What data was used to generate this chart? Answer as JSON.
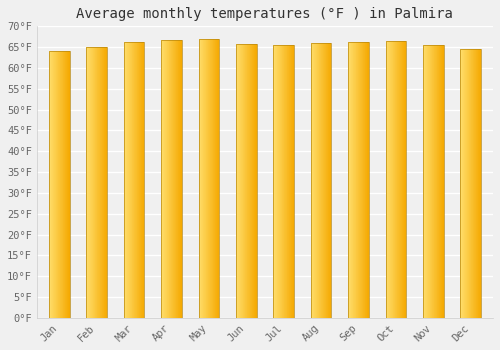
{
  "title": "Average monthly temperatures (°F ) in Palmira",
  "months": [
    "Jan",
    "Feb",
    "Mar",
    "Apr",
    "May",
    "Jun",
    "Jul",
    "Aug",
    "Sep",
    "Oct",
    "Nov",
    "Dec"
  ],
  "values": [
    64.0,
    65.1,
    66.2,
    66.6,
    67.0,
    65.8,
    65.5,
    66.0,
    66.2,
    66.5,
    65.5,
    64.6
  ],
  "ylim": [
    0,
    70
  ],
  "yticks": [
    0,
    5,
    10,
    15,
    20,
    25,
    30,
    35,
    40,
    45,
    50,
    55,
    60,
    65,
    70
  ],
  "ytick_labels": [
    "0°F",
    "5°F",
    "10°F",
    "15°F",
    "20°F",
    "25°F",
    "30°F",
    "35°F",
    "40°F",
    "45°F",
    "50°F",
    "55°F",
    "60°F",
    "65°F",
    "70°F"
  ],
  "bar_color_light": "#FFD966",
  "bar_color_dark": "#F5A800",
  "bar_edge_color": "#B8860B",
  "background_color": "#f0f0f0",
  "plot_bg_color": "#f0f0f0",
  "grid_color": "#ffffff",
  "title_fontsize": 10,
  "tick_fontsize": 7.5,
  "font_family": "monospace",
  "bar_width": 0.55
}
